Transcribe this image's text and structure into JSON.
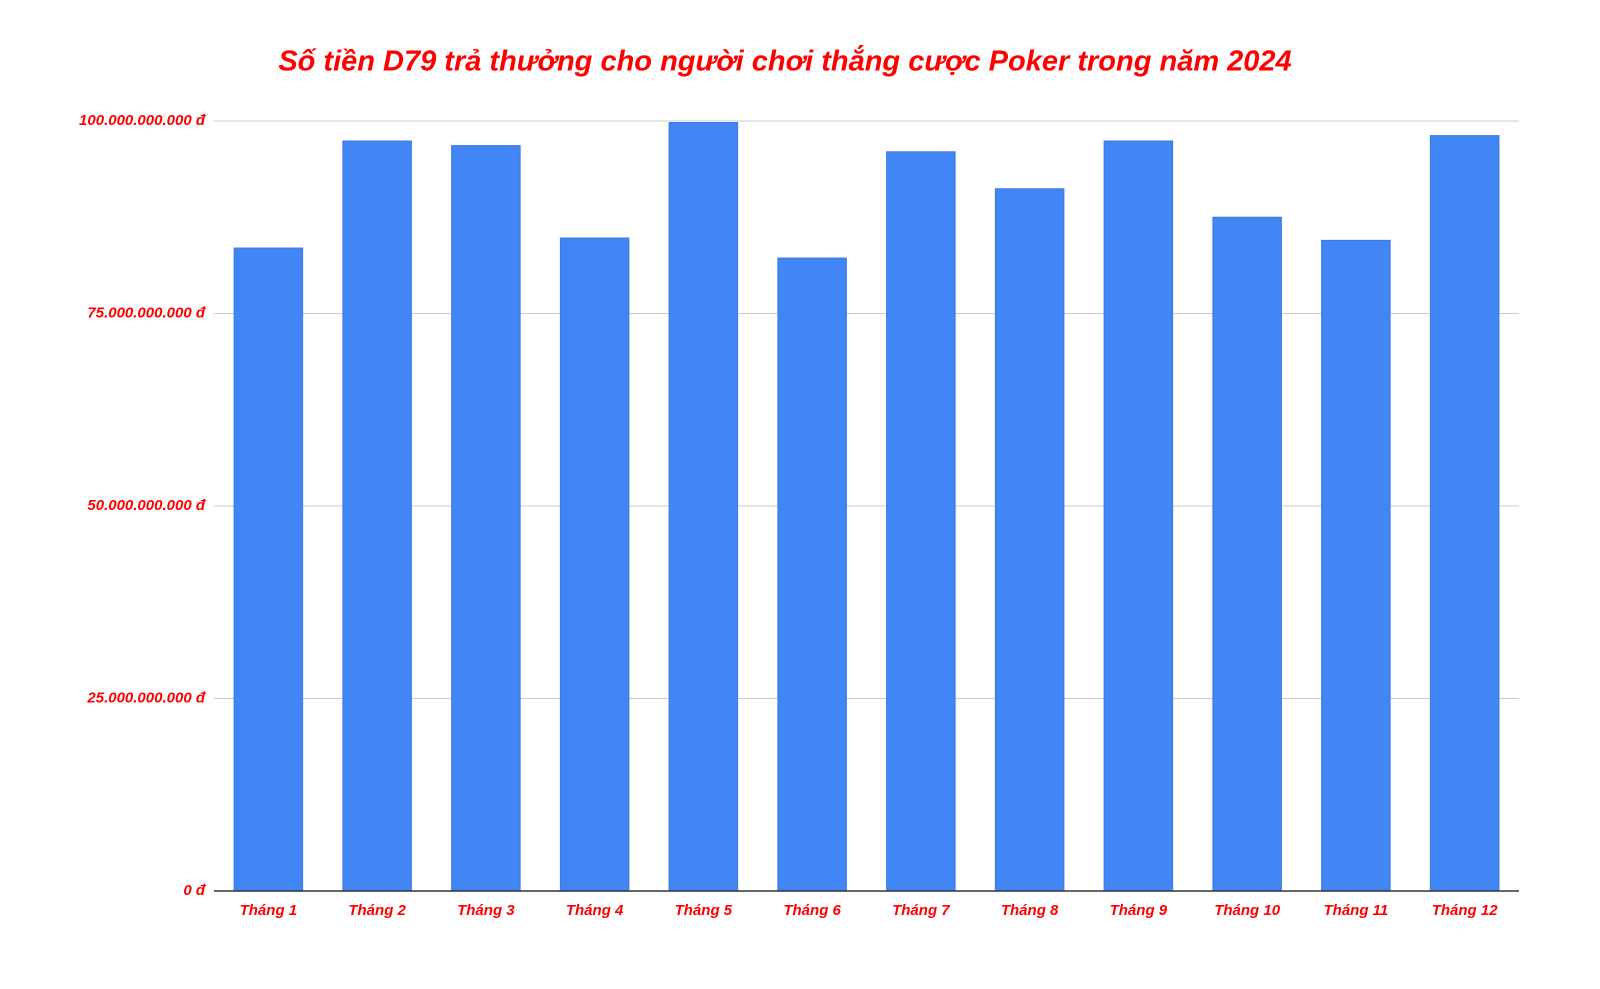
{
  "chart_data": {
    "type": "bar",
    "title": "Số tiền D79 trả thưởng cho người chơi thắng cược Poker trong năm 2024",
    "categories": [
      "Tháng 1",
      "Tháng 2",
      "Tháng 3",
      "Tháng 4",
      "Tháng 5",
      "Tháng 6",
      "Tháng 7",
      "Tháng 8",
      "Tháng 9",
      "Tháng 10",
      "Tháng 11",
      "Tháng 12"
    ],
    "values": [
      83500000000,
      97400000000,
      96800000000,
      84800000000,
      99800000000,
      82200000000,
      96000000000,
      91200000000,
      97400000000,
      87500000000,
      84500000000,
      98100000000
    ],
    "color": "#4285f4",
    "ylim": [
      0,
      100000000000
    ],
    "yticks": [
      {
        "value": 0,
        "label": "0 đ"
      },
      {
        "value": 25000000000,
        "label": "25.000.000.000 đ"
      },
      {
        "value": 50000000000,
        "label": "50.000.000.000 đ"
      },
      {
        "value": 75000000000,
        "label": "75.000.000.000 đ"
      },
      {
        "value": 100000000000,
        "label": "100.000.000.000 đ"
      }
    ],
    "grid": true
  }
}
